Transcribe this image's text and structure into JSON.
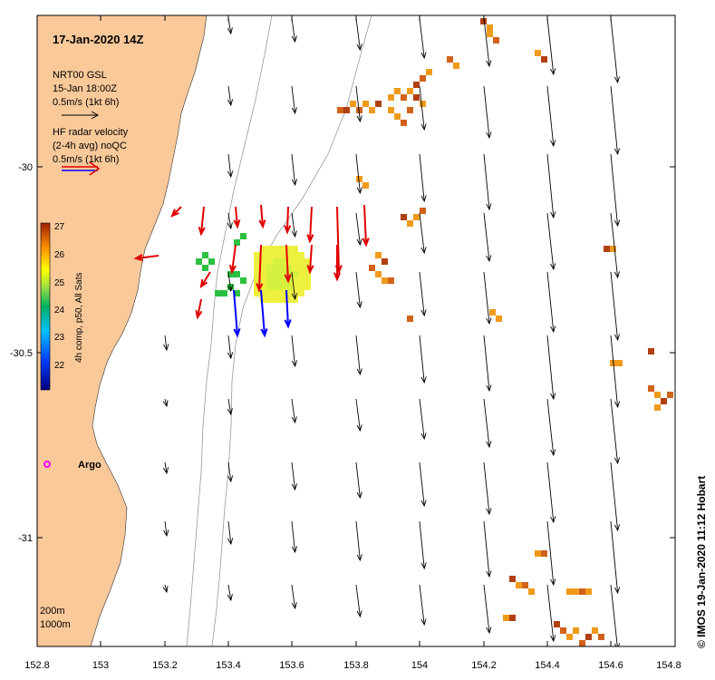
{
  "title": "17-Jan-2020 14Z",
  "legend": {
    "model_line1": "NRT00 GSL",
    "model_line2": "15-Jan 18:00Z",
    "model_scale": "0.5m/s (1kt 6h)",
    "radar_line1": "HF radar velocity",
    "radar_line2": "(2-4h avg) noQC",
    "radar_scale": "0.5m/s (1kt 6h)"
  },
  "colorbar": {
    "label": "4h comp, p50, All Sats",
    "ticks": [
      "22",
      "23",
      "24",
      "25",
      "26",
      "27"
    ]
  },
  "axes": {
    "x_ticks": [
      "152.8",
      "153",
      "153.2",
      "153.4",
      "153.6",
      "153.8",
      "154",
      "154.2",
      "154.4",
      "154.6",
      "154.8"
    ],
    "y_ticks": [
      "-30",
      "-30.5",
      "-31"
    ]
  },
  "depth_labels": [
    "200m",
    "1000m"
  ],
  "argo_label": "Argo",
  "credit": "© IMOS 19-Jan-2020 11:12 Hobart",
  "colors": {
    "land": "#f9c99a",
    "model_arrow": "#000000",
    "radar_red": "#e00000",
    "radar_blue": "#0000ff",
    "argo": "#ff00ff"
  }
}
